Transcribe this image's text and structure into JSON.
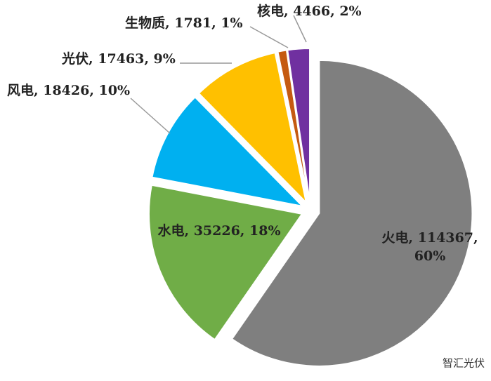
{
  "chart_data": {
    "type": "pie",
    "values": [
      114367,
      35226,
      18426,
      17463,
      1781,
      4466
    ],
    "value_labels": [
      "火电, 114367, 60%",
      "水电, 35226, 18%",
      "风电, 18426, 10%",
      "光伏, 17463, 9%",
      "生物质, 1781, 1%",
      "核电, 4466, 2%"
    ],
    "colors": [
      "#7f7f7f",
      "#70ad47",
      "#00b0f0",
      "#ffc000",
      "#c55a11",
      "#7030a0"
    ],
    "watermark": "智汇光伏"
  }
}
